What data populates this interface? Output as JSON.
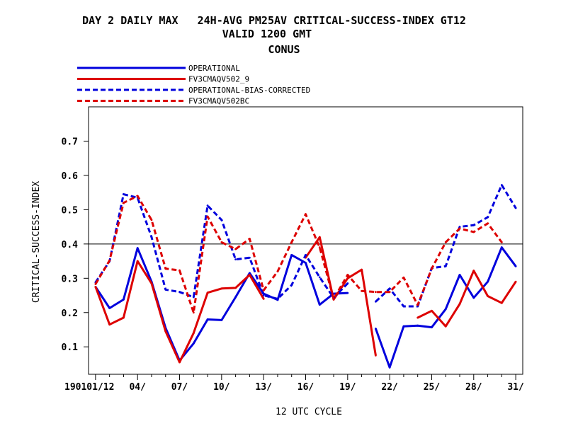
{
  "chart_data": {
    "type": "line",
    "title_lines": [
      "DAY 2 DAILY MAX   24H-AVG PM25AV CRITICAL-SUCCESS-INDEX GT12",
      "VALID 1200 GMT",
      "CONUS"
    ],
    "xlabel": "12 UTC CYCLE",
    "ylabel": "CRITICAL-SUCCESS-INDEX",
    "xlim": [
      0.5,
      31.5
    ],
    "ylim": [
      0.02,
      0.8
    ],
    "x_ticks": [
      {
        "x": 1,
        "label": "190101/12"
      },
      {
        "x": 4,
        "label": "04/"
      },
      {
        "x": 7,
        "label": "07/"
      },
      {
        "x": 10,
        "label": "10/"
      },
      {
        "x": 13,
        "label": "13/"
      },
      {
        "x": 16,
        "label": "16/"
      },
      {
        "x": 19,
        "label": "19/"
      },
      {
        "x": 22,
        "label": "22/"
      },
      {
        "x": 25,
        "label": "25/"
      },
      {
        "x": 28,
        "label": "28/"
      },
      {
        "x": 31,
        "label": "31/"
      }
    ],
    "y_ticks": [
      {
        "y": 0.1,
        "label": "0.1"
      },
      {
        "y": 0.2,
        "label": "0.2"
      },
      {
        "y": 0.3,
        "label": "0.3"
      },
      {
        "y": 0.4,
        "label": "0.4"
      },
      {
        "y": 0.5,
        "label": "0.5"
      },
      {
        "y": 0.6,
        "label": "0.6"
      },
      {
        "y": 0.7,
        "label": "0.7"
      }
    ],
    "reference_line": 0.4,
    "legend_position": "top-left",
    "series": [
      {
        "name": "OPERATIONAL",
        "color": "#0000dd",
        "dash": "solid",
        "values": [
          0.275,
          0.213,
          0.238,
          0.388,
          0.29,
          0.155,
          0.06,
          0.11,
          0.18,
          0.178,
          0.245,
          0.315,
          0.255,
          0.237,
          0.368,
          0.345,
          0.223,
          0.255,
          0.257,
          null,
          0.153,
          0.04,
          0.16,
          0.162,
          0.157,
          0.21,
          0.31,
          0.243,
          0.29,
          0.39,
          0.335
        ]
      },
      {
        "name": "FV3CMAQV502_9",
        "color": "#dd0000",
        "dash": "solid",
        "values": [
          0.275,
          0.165,
          0.185,
          0.35,
          0.285,
          0.145,
          0.055,
          0.14,
          0.258,
          0.27,
          0.272,
          0.31,
          0.24,
          null,
          null,
          0.36,
          0.42,
          0.238,
          0.3,
          0.325,
          0.075,
          null,
          null,
          0.185,
          0.205,
          0.16,
          0.225,
          0.322,
          0.248,
          0.228,
          0.29
        ]
      },
      {
        "name": "OPERATIONAL-BIAS-CORRECTED",
        "color": "#0000dd",
        "dash": "dashed",
        "values": [
          0.288,
          0.35,
          0.545,
          0.535,
          0.42,
          0.267,
          0.26,
          0.245,
          0.512,
          0.47,
          0.355,
          0.36,
          0.25,
          0.24,
          0.28,
          0.368,
          0.303,
          0.243,
          0.285,
          null,
          0.232,
          0.27,
          0.218,
          0.218,
          0.33,
          0.335,
          0.45,
          0.455,
          0.478,
          0.572,
          0.505
        ]
      },
      {
        "name": "FV3CMAQV502BC",
        "color": "#dd0000",
        "dash": "dashed",
        "values": [
          0.283,
          0.352,
          0.52,
          0.54,
          0.47,
          0.328,
          0.323,
          0.2,
          0.48,
          0.405,
          0.385,
          0.415,
          0.265,
          0.32,
          0.405,
          0.487,
          0.39,
          0.24,
          0.31,
          0.263,
          0.26,
          0.26,
          0.302,
          0.222,
          0.328,
          0.405,
          0.445,
          0.435,
          0.46,
          0.405,
          null
        ]
      }
    ]
  }
}
